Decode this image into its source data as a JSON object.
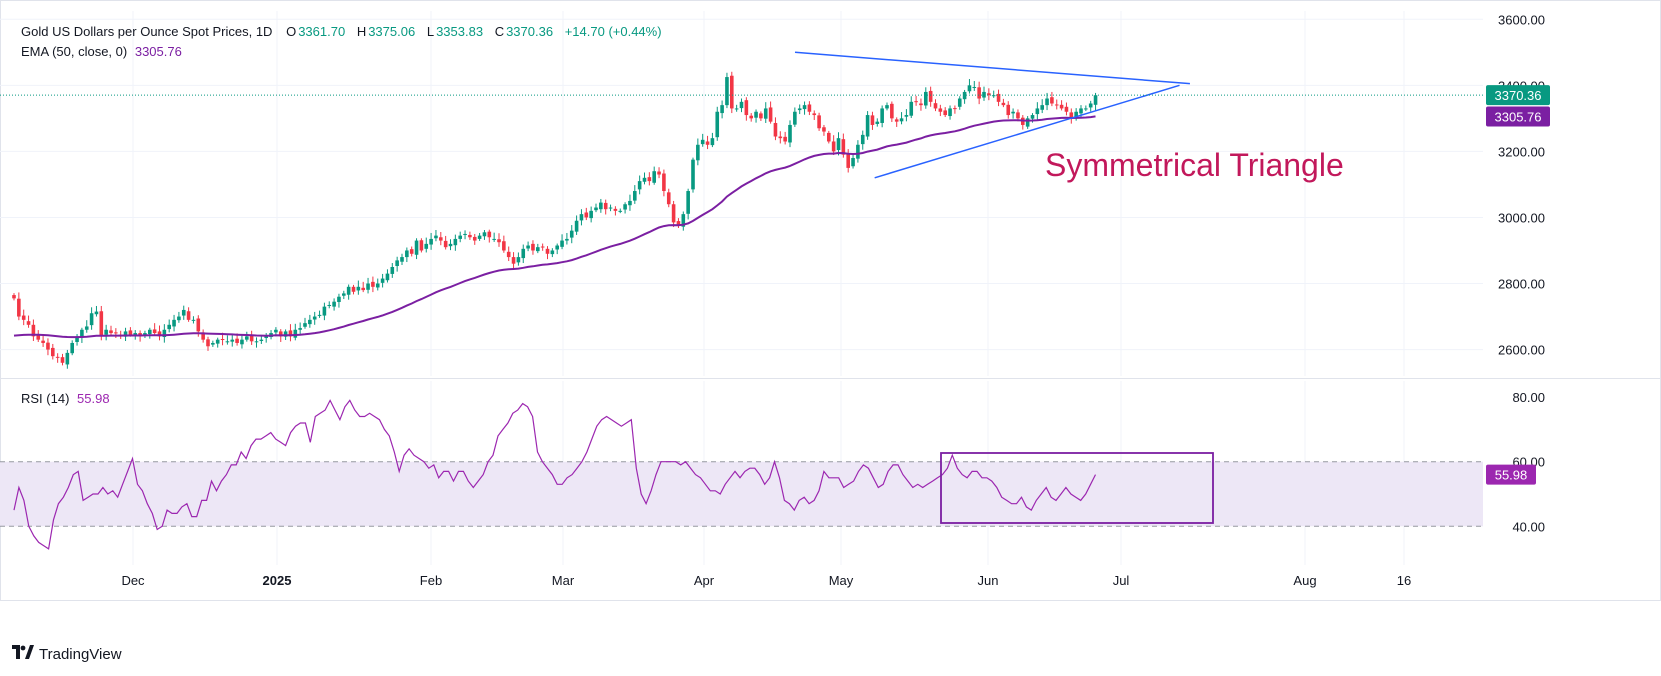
{
  "header": {
    "symbol_title": "Gold US Dollars per Ounce Spot Prices, 1D",
    "open_label": "O",
    "open": "3361.70",
    "high_label": "H",
    "high": "3375.06",
    "low_label": "L",
    "low": "3353.83",
    "close_label": "C",
    "close": "3370.36",
    "change": "+14.70 (+0.44%)"
  },
  "ema_legend": {
    "label": "EMA (50, close, 0)",
    "value": "3305.76"
  },
  "rsi_legend": {
    "label": "RSI (14)",
    "value": "55.98"
  },
  "annotation": "Symmetrical Triangle",
  "brand": "TradingView",
  "colors": {
    "up": "#089981",
    "down": "#F23645",
    "ema": "#7B1FA2",
    "rsi": "#9C27B0",
    "trendline": "#2962FF",
    "annotation": "#C2185B",
    "rsi_band": "#EDE7F6"
  },
  "chart_data": [
    {
      "type": "candlestick",
      "interval": "1D",
      "x_labels": [
        "Dec",
        "2025",
        "Feb",
        "Mar",
        "Apr",
        "May",
        "Jun",
        "Jul",
        "Aug",
        "16"
      ],
      "y_ticks": [
        "2600.00",
        "2800.00",
        "3000.00",
        "3200.00",
        "3400.00",
        "3600.00"
      ],
      "ylim": [
        2520,
        3625
      ],
      "last_price_label": "3370.36",
      "ema_price_label": "3305.76",
      "close_series": [
        2755,
        2700,
        2690,
        2675,
        2640,
        2630,
        2620,
        2600,
        2580,
        2575,
        2560,
        2590,
        2620,
        2640,
        2660,
        2670,
        2710,
        2715,
        2640,
        2660,
        2650,
        2650,
        2640,
        2655,
        2645,
        2650,
        2640,
        2650,
        2660,
        2650,
        2640,
        2660,
        2675,
        2690,
        2700,
        2720,
        2690,
        2690,
        2655,
        2630,
        2610,
        2620,
        2630,
        2630,
        2625,
        2630,
        2620,
        2630,
        2640,
        2625,
        2625,
        2630,
        2640,
        2650,
        2660,
        2640,
        2655,
        2640,
        2660,
        2665,
        2680,
        2690,
        2700,
        2705,
        2730,
        2735,
        2745,
        2760,
        2770,
        2790,
        2775,
        2790,
        2780,
        2800,
        2790,
        2800,
        2815,
        2830,
        2850,
        2870,
        2880,
        2900,
        2890,
        2930,
        2900,
        2920,
        2935,
        2945,
        2930,
        2910,
        2920,
        2935,
        2945,
        2950,
        2940,
        2930,
        2945,
        2955,
        2940,
        2935,
        2925,
        2900,
        2880,
        2860,
        2880,
        2905,
        2915,
        2900,
        2910,
        2910,
        2890,
        2900,
        2915,
        2930,
        2935,
        2960,
        2990,
        3010,
        3000,
        3020,
        3030,
        3045,
        3025,
        3030,
        3020,
        3020,
        3040,
        3050,
        3080,
        3110,
        3120,
        3110,
        3140,
        3130,
        3080,
        3040,
        2985,
        2975,
        3010,
        3080,
        3175,
        3220,
        3235,
        3220,
        3240,
        3320,
        3340,
        3425,
        3330,
        3330,
        3350,
        3310,
        3300,
        3320,
        3300,
        3330,
        3290,
        3245,
        3240,
        3230,
        3280,
        3320,
        3330,
        3340,
        3320,
        3310,
        3270,
        3260,
        3230,
        3200,
        3240,
        3190,
        3150,
        3180,
        3220,
        3250,
        3310,
        3280,
        3290,
        3330,
        3340,
        3300,
        3290,
        3300,
        3310,
        3350,
        3350,
        3340,
        3380,
        3350,
        3330,
        3320,
        3310,
        3330,
        3330,
        3360,
        3380,
        3400,
        3395,
        3360,
        3380,
        3370,
        3370,
        3350,
        3340,
        3310,
        3320,
        3300,
        3280,
        3300,
        3310,
        3330,
        3340,
        3360,
        3345,
        3340,
        3330,
        3320,
        3300,
        3320,
        3330,
        3330,
        3345,
        3370
      ],
      "ema50_range": [
        2640,
        3305.76
      ],
      "trendline_upper": {
        "from": [
          "2025-04-22",
          3500
        ],
        "to": [
          "2025-08-14",
          3405
        ]
      },
      "trendline_lower": {
        "from": [
          "2025-05-15",
          3120
        ],
        "to": [
          "2025-08-11",
          3400
        ]
      }
    },
    {
      "type": "line",
      "name": "RSI (14)",
      "y_ticks": [
        "40.00",
        "60.00",
        "80.00"
      ],
      "ylim": [
        28,
        85
      ],
      "band": [
        40,
        60
      ],
      "last_value_label": "55.98",
      "values": [
        45,
        52,
        48,
        40,
        37,
        35,
        34,
        33,
        42,
        47,
        49,
        52,
        56,
        57,
        48,
        49,
        50,
        50,
        52,
        50,
        51,
        49,
        53,
        57,
        61,
        53,
        51,
        47,
        44,
        39,
        40,
        45,
        44,
        44,
        46,
        47,
        43,
        43,
        48,
        48,
        54,
        51,
        54,
        56,
        59,
        59,
        63,
        61,
        65,
        67,
        67,
        68,
        69,
        67,
        66,
        65,
        69,
        71,
        72,
        72,
        66,
        74,
        75,
        76,
        79,
        76,
        73,
        77,
        79,
        76,
        74,
        74,
        75,
        74,
        73,
        70,
        68,
        63,
        57,
        62,
        64,
        62,
        61,
        60,
        58,
        59,
        55,
        57,
        57,
        54,
        57,
        57,
        54,
        52,
        54,
        56,
        60,
        62,
        68,
        70,
        72,
        75,
        76,
        78,
        77,
        74,
        63,
        60,
        58,
        56,
        53,
        53,
        55,
        56,
        58,
        60,
        63,
        67,
        71,
        73,
        74,
        73,
        72,
        71,
        72,
        73,
        58,
        50,
        47,
        51,
        56,
        60,
        60,
        60,
        60,
        59,
        60,
        58,
        56,
        55,
        53,
        51,
        51,
        50,
        53,
        55,
        57,
        55,
        57,
        58,
        58,
        56,
        53,
        55,
        60,
        55,
        48,
        47,
        45,
        48,
        49,
        47,
        48,
        51,
        57,
        55,
        55,
        55,
        52,
        53,
        54,
        57,
        59,
        58,
        55,
        52,
        53,
        57,
        59,
        59,
        56,
        54,
        52,
        53,
        52,
        53,
        54,
        55,
        56,
        58,
        62,
        58,
        56,
        55,
        57,
        57,
        55,
        55,
        54,
        52,
        49,
        48,
        47,
        47,
        49,
        46,
        45,
        48,
        50,
        52,
        49,
        48,
        50,
        52,
        50,
        49,
        48,
        50,
        53,
        56
      ]
    }
  ]
}
